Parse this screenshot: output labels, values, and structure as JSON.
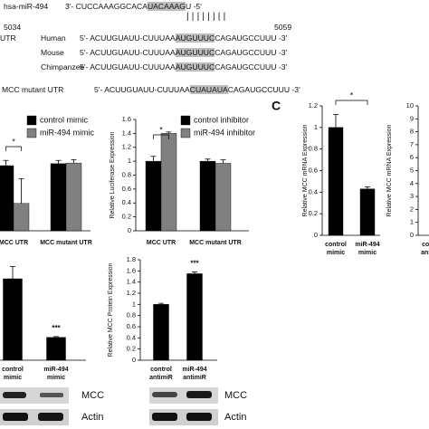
{
  "alignment": {
    "mirna_label": "hsa-miR-494",
    "mirna_seq": {
      "pre": "3'- CUCCAAAGGCACA",
      "hl": "UACAAAG",
      "post": "U -5'"
    },
    "pairs": "||||||||",
    "start": "5034",
    "end": "5059",
    "utr_label": "UTR",
    "rows": [
      {
        "species": "Human",
        "pre": "5'- ACUUGUAUU-CUUUAA",
        "hl": "AUGUUUC",
        "post": "CAGAUGCCUUU -3'"
      },
      {
        "species": "Mouse",
        "pre": "5'- ACUUGUAUU-CUUUAA",
        "hl": "AUGUUUC",
        "post": "CAGAUGCCUUU -3'"
      },
      {
        "species": "Chimpanzee",
        "pre": "5'- ACUUGUAUU-CUUUAA",
        "hl": "AUGUUUC",
        "post": "CAGAUGCCUUU -3'"
      }
    ],
    "mutant": {
      "label": "MCC mutant UTR",
      "pre": "5'- ACUUGUAUU-CUUUAA",
      "hl": "CUAUAUA",
      "post": "CAGAUGCCUUU -3'"
    }
  },
  "panel_label": "C",
  "chart_data": [
    {
      "type": "bar",
      "categories": [
        "MCC UTR",
        "MCC mutant UTR"
      ],
      "series": [
        {
          "name": "control mimic",
          "color": "#000000",
          "values": [
            1.0,
            1.03
          ],
          "errors": [
            0.08,
            0.05
          ]
        },
        {
          "name": "miR-494 mimic",
          "color": "#808080",
          "values": [
            0.42,
            1.04
          ],
          "errors": [
            0.38,
            0.05
          ]
        }
      ],
      "ylim": [
        0,
        1.4
      ],
      "annotations": [
        {
          "text": "*"
        }
      ]
    },
    {
      "type": "bar",
      "y_label": "Relative Luciferase Expression",
      "categories": [
        "MCC UTR",
        "MCC mutant UTR"
      ],
      "series": [
        {
          "name": "control inhibitor",
          "color": "#000000",
          "values": [
            1.0,
            1.0
          ],
          "errors": [
            0.07,
            0.03
          ]
        },
        {
          "name": "miR-494 inhibitor",
          "color": "#808080",
          "values": [
            1.4,
            0.97
          ],
          "errors": [
            0.02,
            0.05
          ]
        }
      ],
      "ylim": [
        0,
        1.6
      ],
      "yticks": [
        0,
        0.2,
        0.4,
        0.6,
        0.8,
        1,
        1.2,
        1.4,
        1.6
      ],
      "annotations": [
        {
          "text": "*"
        }
      ]
    },
    {
      "type": "bar",
      "y_label": "Relative MCC mRNA Expression",
      "categories": [
        "control mimic",
        "miR-494 mimic"
      ],
      "values": [
        1.0,
        0.43
      ],
      "errors": [
        0.12,
        0.02
      ],
      "color": "#000000",
      "ylim": [
        0,
        1.2
      ],
      "yticks": [
        0,
        0.2,
        0.4,
        0.6,
        0.8,
        1,
        1.2
      ],
      "annotations": [
        {
          "text": "*"
        }
      ]
    },
    {
      "type": "bar",
      "y_label": "Relative MCC mRNA Expression",
      "categories": [
        "control antimiR"
      ],
      "ylim": [
        0,
        10
      ],
      "yticks": [
        0,
        1,
        2,
        3,
        4,
        5,
        6,
        7,
        8,
        9,
        10
      ]
    },
    {
      "type": "bar",
      "categories": [
        "control mimic",
        "miR-494 mimic"
      ],
      "values": [
        1.0,
        0.28
      ],
      "errors": [
        0.15,
        0.01
      ],
      "color": "#000000",
      "ylim": [
        0,
        1.2
      ],
      "annotations": [
        {
          "text": "***"
        }
      ]
    },
    {
      "type": "bar",
      "y_label": "Relative MCC Protein Expression",
      "categories": [
        "control antimiR",
        "miR-494 antimiR"
      ],
      "values": [
        1.0,
        1.55
      ],
      "errors": [
        0.02,
        0.03
      ],
      "color": "#000000",
      "ylim": [
        0,
        1.8
      ],
      "yticks": [
        0,
        0.2,
        0.4,
        0.6,
        0.8,
        1,
        1.2,
        1.4,
        1.6,
        1.8
      ],
      "annotations": [
        {
          "text": "***"
        }
      ]
    }
  ],
  "blots": [
    {
      "labels": [
        "MCC",
        "Actin"
      ]
    },
    {
      "labels": [
        "MCC",
        "Actin"
      ]
    }
  ]
}
